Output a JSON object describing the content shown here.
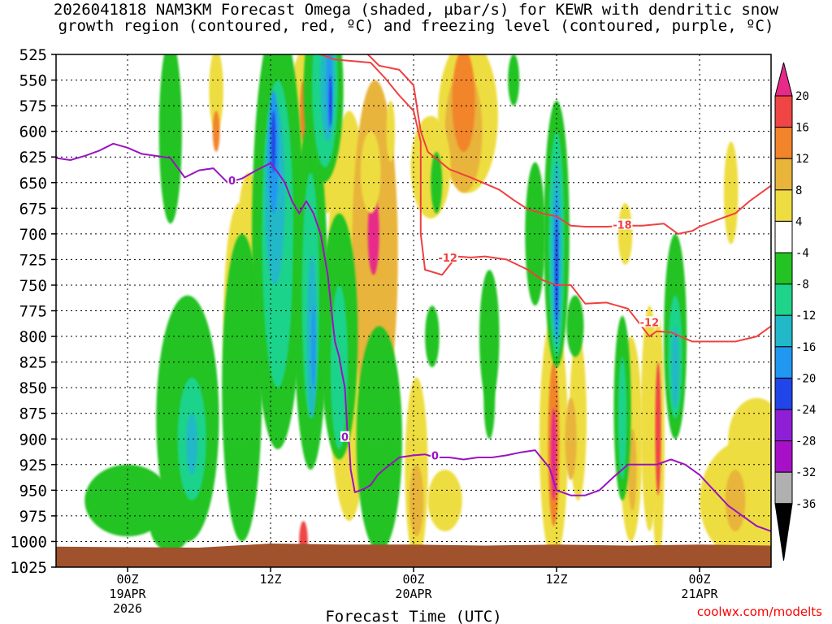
{
  "chart_data": {
    "type": "heatmap",
    "title_line1": "2026041818 NAM3KM Forecast Omega (shaded, µbar/s) for KEWR with dendritic snow",
    "title_line2": "growth region (contoured, red, ºC) and freezing level (contoured, purple, ºC)",
    "xlabel": "Forecast Time (UTC)",
    "credit": "coolwx.com/modelts",
    "y_axis": {
      "unit": "hPa",
      "ticks": [
        525,
        550,
        575,
        600,
        625,
        650,
        675,
        700,
        725,
        750,
        775,
        800,
        825,
        850,
        875,
        900,
        925,
        950,
        975,
        1000,
        1025
      ],
      "range": [
        525,
        1025
      ]
    },
    "x_axis": {
      "range_hours": [
        -5,
        45
      ],
      "ticks": [
        {
          "hour": 0,
          "line1": "00Z",
          "line2": "19APR",
          "line3": "2026"
        },
        {
          "hour": 10,
          "line1": "12Z",
          "line2": "",
          "line3": ""
        },
        {
          "hour": 20,
          "line1": "00Z",
          "line2": "20APR",
          "line3": ""
        },
        {
          "hour": 30,
          "line1": "12Z",
          "line2": "",
          "line3": ""
        },
        {
          "hour": 40,
          "line1": "00Z",
          "line2": "21APR",
          "line3": ""
        }
      ]
    },
    "colorbar": {
      "labels": [
        "20",
        "16",
        "12",
        "8",
        "4",
        "-4",
        "-8",
        "-12",
        "-16",
        "-20",
        "-24",
        "-28",
        "-32",
        "-36"
      ],
      "colors": [
        "#e8298a",
        "#f04545",
        "#f2842c",
        "#e8b43a",
        "#eedd40",
        "#ffffff",
        "#22c322",
        "#1fd38b",
        "#21b8c8",
        "#2098f0",
        "#2045e8",
        "#8e1fd6",
        "#a810c8",
        "#b0b0b0"
      ],
      "top_cap": "#e8298a",
      "bottom_cap": "#000000"
    },
    "shading": [
      {
        "x": 6.2,
        "p": 560,
        "rx": 0.5,
        "ry": 40,
        "v": 2
      },
      {
        "x": 6.2,
        "p": 600,
        "rx": 0.25,
        "ry": 20,
        "v": 4
      },
      {
        "x": 7.8,
        "p": 790,
        "rx": 1.1,
        "ry": 120,
        "v": 2
      },
      {
        "x": 8.5,
        "p": 700,
        "rx": 0.8,
        "ry": 60,
        "v": 2
      },
      {
        "x": 8.3,
        "p": 880,
        "rx": 0.7,
        "ry": 40,
        "v": 3
      },
      {
        "x": 12.4,
        "p": 610,
        "rx": 1.3,
        "ry": 90,
        "v": 2
      },
      {
        "x": 12.3,
        "p": 580,
        "rx": 0.25,
        "ry": 30,
        "v": 4
      },
      {
        "x": 12.3,
        "p": 1000,
        "rx": 0.3,
        "ry": 20,
        "v": 5
      },
      {
        "x": 14.0,
        "p": 610,
        "rx": 0.7,
        "ry": 70,
        "v": 2
      },
      {
        "x": 15.5,
        "p": 780,
        "rx": 1.6,
        "ry": 200,
        "v": 2
      },
      {
        "x": 17.4,
        "p": 740,
        "rx": 0.8,
        "ry": 90,
        "v": 5
      },
      {
        "x": 17.3,
        "p": 720,
        "rx": 1.6,
        "ry": 170,
        "v": 3
      },
      {
        "x": 17.2,
        "p": 700,
        "rx": 0.4,
        "ry": 40,
        "v": 6
      },
      {
        "x": 17.0,
        "p": 640,
        "rx": 0.7,
        "ry": 40,
        "v": 2
      },
      {
        "x": 18.4,
        "p": 600,
        "rx": 0.3,
        "ry": 30,
        "v": 2
      },
      {
        "x": 20.2,
        "p": 930,
        "rx": 0.8,
        "ry": 90,
        "v": 2
      },
      {
        "x": 20.2,
        "p": 960,
        "rx": 0.5,
        "ry": 35,
        "v": 3
      },
      {
        "x": 23.8,
        "p": 585,
        "rx": 2.1,
        "ry": 75,
        "v": 2
      },
      {
        "x": 23.5,
        "p": 600,
        "rx": 1.3,
        "ry": 60,
        "v": 3
      },
      {
        "x": 23.5,
        "p": 570,
        "rx": 0.8,
        "ry": 50,
        "v": 4
      },
      {
        "x": 21.2,
        "p": 635,
        "rx": 1.4,
        "ry": 50,
        "v": 2
      },
      {
        "x": 22.2,
        "p": 960,
        "rx": 1.2,
        "ry": 30,
        "v": 2
      },
      {
        "x": 29.8,
        "p": 900,
        "rx": 1.0,
        "ry": 120,
        "v": 2
      },
      {
        "x": 29.8,
        "p": 905,
        "rx": 0.4,
        "ry": 80,
        "v": 4
      },
      {
        "x": 29.8,
        "p": 915,
        "rx": 0.2,
        "ry": 45,
        "v": 6
      },
      {
        "x": 31.5,
        "p": 880,
        "rx": 0.6,
        "ry": 80,
        "v": 2
      },
      {
        "x": 31.0,
        "p": 900,
        "rx": 0.4,
        "ry": 40,
        "v": 3
      },
      {
        "x": 34.8,
        "p": 700,
        "rx": 0.5,
        "ry": 30,
        "v": 2
      },
      {
        "x": 35.2,
        "p": 900,
        "rx": 0.8,
        "ry": 100,
        "v": 2
      },
      {
        "x": 35.3,
        "p": 930,
        "rx": 0.3,
        "ry": 40,
        "v": 3
      },
      {
        "x": 36.5,
        "p": 880,
        "rx": 0.6,
        "ry": 110,
        "v": 2
      },
      {
        "x": 37.1,
        "p": 900,
        "rx": 0.45,
        "ry": 120,
        "v": 2
      },
      {
        "x": 37.1,
        "p": 890,
        "rx": 0.2,
        "ry": 65,
        "v": 5
      },
      {
        "x": 43.5,
        "p": 960,
        "rx": 3.5,
        "ry": 60,
        "v": 2
      },
      {
        "x": 44.0,
        "p": 900,
        "rx": 2.0,
        "ry": 40,
        "v": 2
      },
      {
        "x": 42.5,
        "p": 960,
        "rx": 0.7,
        "ry": 30,
        "v": 3
      },
      {
        "x": 42.2,
        "p": 660,
        "rx": 0.5,
        "ry": 50,
        "v": 2
      },
      {
        "x": 0.0,
        "p": 960,
        "rx": 3.0,
        "ry": 35,
        "v": -1
      },
      {
        "x": 3.0,
        "p": 600,
        "rx": 0.8,
        "ry": 90,
        "v": -1
      },
      {
        "x": 3.0,
        "p": 980,
        "rx": 1.5,
        "ry": 30,
        "v": -1
      },
      {
        "x": 4.2,
        "p": 880,
        "rx": 2.2,
        "ry": 120,
        "v": -1
      },
      {
        "x": 4.5,
        "p": 900,
        "rx": 1.0,
        "ry": 60,
        "v": -2
      },
      {
        "x": 4.5,
        "p": 905,
        "rx": 0.4,
        "ry": 30,
        "v": -3
      },
      {
        "x": 8.0,
        "p": 850,
        "rx": 1.4,
        "ry": 150,
        "v": -1
      },
      {
        "x": 10.5,
        "p": 700,
        "rx": 1.8,
        "ry": 210,
        "v": -1
      },
      {
        "x": 10.5,
        "p": 700,
        "rx": 1.1,
        "ry": 150,
        "v": -2
      },
      {
        "x": 10.3,
        "p": 660,
        "rx": 0.7,
        "ry": 90,
        "v": -3
      },
      {
        "x": 10.2,
        "p": 620,
        "rx": 0.35,
        "ry": 60,
        "v": -4
      },
      {
        "x": 10.2,
        "p": 610,
        "rx": 0.15,
        "ry": 30,
        "v": -5
      },
      {
        "x": 12.8,
        "p": 760,
        "rx": 1.2,
        "ry": 170,
        "v": -1
      },
      {
        "x": 12.8,
        "p": 760,
        "rx": 0.6,
        "ry": 120,
        "v": -2
      },
      {
        "x": 12.9,
        "p": 800,
        "rx": 0.35,
        "ry": 80,
        "v": -3
      },
      {
        "x": 13.0,
        "p": 810,
        "rx": 0.15,
        "ry": 40,
        "v": -4
      },
      {
        "x": 13.7,
        "p": 560,
        "rx": 1.4,
        "ry": 90,
        "v": -1
      },
      {
        "x": 13.8,
        "p": 555,
        "rx": 0.9,
        "ry": 80,
        "v": -2
      },
      {
        "x": 14.0,
        "p": 550,
        "rx": 0.5,
        "ry": 60,
        "v": -3
      },
      {
        "x": 14.1,
        "p": 555,
        "rx": 0.2,
        "ry": 45,
        "v": -4
      },
      {
        "x": 14.2,
        "p": 570,
        "rx": 0.1,
        "ry": 25,
        "v": -5
      },
      {
        "x": 14.8,
        "p": 800,
        "rx": 1.3,
        "ry": 120,
        "v": -1
      },
      {
        "x": 14.8,
        "p": 830,
        "rx": 0.6,
        "ry": 80,
        "v": -2
      },
      {
        "x": 17.6,
        "p": 900,
        "rx": 1.6,
        "ry": 110,
        "v": -1
      },
      {
        "x": 21.6,
        "p": 650,
        "rx": 0.4,
        "ry": 30,
        "v": -1
      },
      {
        "x": 21.3,
        "p": 800,
        "rx": 0.5,
        "ry": 30,
        "v": -1
      },
      {
        "x": 25.3,
        "p": 800,
        "rx": 0.7,
        "ry": 65,
        "v": -1
      },
      {
        "x": 25.3,
        "p": 860,
        "rx": 0.4,
        "ry": 40,
        "v": -1
      },
      {
        "x": 27.0,
        "p": 550,
        "rx": 0.4,
        "ry": 25,
        "v": -1
      },
      {
        "x": 28.5,
        "p": 700,
        "rx": 0.7,
        "ry": 70,
        "v": -1
      },
      {
        "x": 30.0,
        "p": 700,
        "rx": 0.9,
        "ry": 130,
        "v": -1
      },
      {
        "x": 30.0,
        "p": 710,
        "rx": 0.55,
        "ry": 110,
        "v": -2
      },
      {
        "x": 30.0,
        "p": 720,
        "rx": 0.35,
        "ry": 90,
        "v": -3
      },
      {
        "x": 30.0,
        "p": 730,
        "rx": 0.2,
        "ry": 70,
        "v": -4
      },
      {
        "x": 30.0,
        "p": 735,
        "rx": 0.1,
        "ry": 50,
        "v": -5
      },
      {
        "x": 31.3,
        "p": 790,
        "rx": 0.6,
        "ry": 30,
        "v": -1
      },
      {
        "x": 34.6,
        "p": 870,
        "rx": 0.6,
        "ry": 90,
        "v": -1
      },
      {
        "x": 34.6,
        "p": 880,
        "rx": 0.3,
        "ry": 60,
        "v": -2
      },
      {
        "x": 38.3,
        "p": 800,
        "rx": 0.8,
        "ry": 100,
        "v": -1
      },
      {
        "x": 38.3,
        "p": 820,
        "rx": 0.5,
        "ry": 60,
        "v": -2
      },
      {
        "x": 38.3,
        "p": 830,
        "rx": 0.25,
        "ry": 40,
        "v": -3
      }
    ],
    "dgz_contours": [
      {
        "label": "-12",
        "points": [
          [
            13.5,
            525
          ],
          [
            14.5,
            530
          ],
          [
            17.0,
            533
          ],
          [
            18.0,
            548
          ],
          [
            19.0,
            565
          ],
          [
            20.0,
            580
          ],
          [
            20.5,
            610
          ],
          [
            20.5,
            650
          ],
          [
            20.5,
            700
          ],
          [
            20.8,
            735
          ],
          [
            22.0,
            740
          ],
          [
            23.0,
            722
          ],
          [
            24.0,
            723
          ],
          [
            25.0,
            722
          ],
          [
            26.5,
            725
          ],
          [
            28.0,
            735
          ],
          [
            29.0,
            745
          ],
          [
            30.0,
            750
          ],
          [
            31.0,
            750
          ],
          [
            32.0,
            768
          ],
          [
            33.5,
            767
          ],
          [
            35.0,
            773
          ],
          [
            36.5,
            800
          ],
          [
            37.0,
            795
          ],
          [
            38.0,
            796
          ],
          [
            39.5,
            805
          ],
          [
            41.0,
            805
          ],
          [
            42.5,
            805
          ],
          [
            44.0,
            800
          ],
          [
            45.0,
            790
          ]
        ],
        "labels": [
          {
            "x": 22.4,
            "p": 723,
            "text": "-12"
          },
          {
            "x": 36.5,
            "p": 786,
            "text": "-12"
          }
        ]
      },
      {
        "label": "-18",
        "points": [
          [
            16.8,
            525
          ],
          [
            17.6,
            536
          ],
          [
            19.0,
            540
          ],
          [
            20.0,
            555
          ],
          [
            20.5,
            600
          ],
          [
            21.0,
            620
          ],
          [
            22.5,
            637
          ],
          [
            24.0,
            645
          ],
          [
            26.0,
            657
          ],
          [
            27.0,
            667
          ],
          [
            28.0,
            676
          ],
          [
            29.0,
            680
          ],
          [
            30.0,
            683
          ],
          [
            31.0,
            692
          ],
          [
            32.0,
            693
          ],
          [
            33.5,
            693
          ],
          [
            35.0,
            692
          ],
          [
            36.0,
            692
          ],
          [
            37.5,
            690
          ],
          [
            38.5,
            700
          ],
          [
            39.5,
            697
          ],
          [
            40.0,
            693
          ],
          [
            41.5,
            685
          ],
          [
            42.5,
            680
          ],
          [
            43.5,
            668
          ],
          [
            44.5,
            658
          ],
          [
            45.0,
            653
          ]
        ],
        "labels": [
          {
            "x": 34.6,
            "p": 691,
            "text": "-18"
          }
        ]
      }
    ],
    "freezing_contours": [
      {
        "label": "0",
        "points": [
          [
            -5,
            626
          ],
          [
            -4,
            628
          ],
          [
            -3,
            624
          ],
          [
            -2,
            619
          ],
          [
            -1,
            612
          ],
          [
            0,
            616
          ],
          [
            1,
            622
          ],
          [
            2,
            624
          ],
          [
            3,
            626
          ],
          [
            4,
            645
          ],
          [
            5,
            638
          ],
          [
            6,
            636
          ],
          [
            7,
            650
          ],
          [
            8,
            646
          ],
          [
            9,
            638
          ],
          [
            10,
            631
          ],
          [
            10.5,
            640
          ],
          [
            11,
            650
          ],
          [
            11.5,
            668
          ],
          [
            12.0,
            680
          ],
          [
            12.5,
            668
          ],
          [
            13.0,
            680
          ],
          [
            13.5,
            700
          ],
          [
            14.0,
            740
          ],
          [
            14.3,
            780
          ],
          [
            14.5,
            805
          ],
          [
            14.8,
            820
          ],
          [
            15.0,
            836
          ],
          [
            15.2,
            850
          ],
          [
            15.3,
            876
          ],
          [
            15.4,
            898
          ],
          [
            15.5,
            905
          ],
          [
            15.6,
            930
          ],
          [
            15.9,
            952
          ],
          [
            16.5,
            949
          ],
          [
            17.0,
            945
          ],
          [
            17.5,
            935
          ],
          [
            18.0,
            929
          ],
          [
            19.0,
            918
          ],
          [
            20.0,
            916
          ],
          [
            20.8,
            915
          ],
          [
            21.5,
            918
          ],
          [
            22.5,
            918
          ],
          [
            23.5,
            920
          ],
          [
            24.5,
            918
          ],
          [
            25.5,
            918
          ],
          [
            26.5,
            916
          ],
          [
            27.5,
            913
          ],
          [
            28.5,
            911
          ],
          [
            29.5,
            928
          ],
          [
            30.0,
            950
          ],
          [
            31.0,
            955
          ],
          [
            32.0,
            955
          ],
          [
            33.0,
            950
          ],
          [
            34.0,
            937
          ],
          [
            35.0,
            925
          ],
          [
            36.0,
            925
          ],
          [
            37.0,
            925
          ],
          [
            38.0,
            920
          ],
          [
            39.0,
            925
          ],
          [
            40.0,
            935
          ],
          [
            41.0,
            950
          ],
          [
            42.0,
            965
          ],
          [
            43.0,
            975
          ],
          [
            44.0,
            985
          ],
          [
            45.0,
            990
          ]
        ],
        "labels": [
          {
            "x": 7.3,
            "p": 648,
            "text": "0"
          },
          {
            "x": 15.2,
            "p": 898,
            "text": "0"
          },
          {
            "x": 21.5,
            "p": 916,
            "text": "0"
          }
        ]
      }
    ],
    "surface_ground": {
      "color": "#a0522d",
      "pressure": [
        [
          -5,
          1005
        ],
        [
          5,
          1006
        ],
        [
          10,
          1002
        ],
        [
          15,
          1003
        ],
        [
          20,
          1003
        ],
        [
          25,
          1004
        ],
        [
          30,
          1003
        ],
        [
          35,
          1004
        ],
        [
          40,
          1003
        ],
        [
          45,
          1004
        ]
      ]
    }
  }
}
